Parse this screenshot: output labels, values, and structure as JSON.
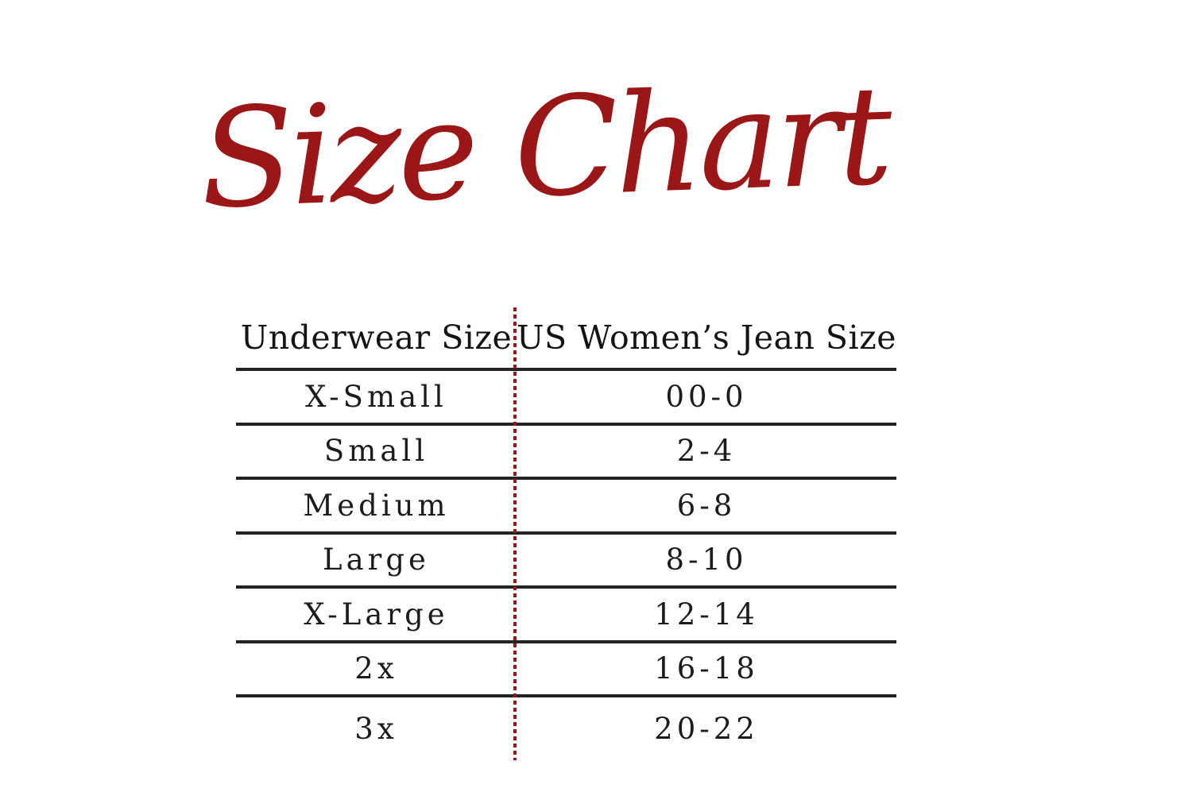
{
  "page": {
    "title": "Size Chart"
  },
  "colors": {
    "title_red": "#9b1616",
    "divider_dotted_red": "#9b1616",
    "row_rule_dark": "#252225",
    "text_dark": "#1c1c1c",
    "background": "#ffffff"
  },
  "size_table": {
    "columns": [
      {
        "label": "Underwear Size"
      },
      {
        "label": "US Women’s Jean Size"
      }
    ],
    "rows": [
      {
        "underwear_size": "X-Small",
        "jean_size": "00-0"
      },
      {
        "underwear_size": "Small",
        "jean_size": "2-4"
      },
      {
        "underwear_size": "Medium",
        "jean_size": "6-8"
      },
      {
        "underwear_size": "Large",
        "jean_size": "8-10"
      },
      {
        "underwear_size": "X-Large",
        "jean_size": "12-14"
      },
      {
        "underwear_size": "2x",
        "jean_size": "16-18"
      },
      {
        "underwear_size": "3x",
        "jean_size": "20-22"
      }
    ]
  }
}
